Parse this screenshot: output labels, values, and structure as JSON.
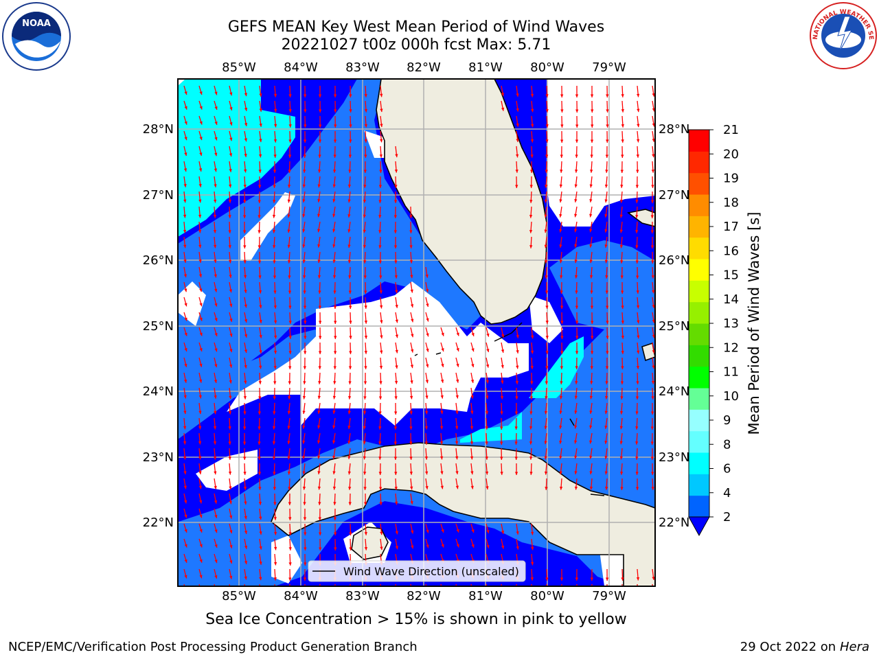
{
  "header": {
    "title_line1": "GEFS MEAN Key West Mean Period of Wind Waves",
    "title_line2": "20221027 t00z 000h fcst   Max: 5.71"
  },
  "logos": {
    "left": {
      "text": "NOAA",
      "icon": "noaa-logo"
    },
    "right": {
      "text": "NATIONAL WEATHER SERVICE",
      "icon": "nws-logo"
    }
  },
  "subtitle": "Sea Ice Concentration > 15% is shown in pink to yellow",
  "footer": {
    "left": "NCEP/EMC/Verification Post Processing Product Generation Branch",
    "right_prefix": "29 Oct 2022 on ",
    "right_host": "Hera"
  },
  "legend": {
    "label": "Wind Wave Direction (unscaled)"
  },
  "colors": {
    "land": "#efede0",
    "ocean_blue": "#0000ff",
    "medium_blue": "#1e78ff",
    "cyan": "#00ffff",
    "arrow": "#ff0000",
    "grid": "#b0b0b0"
  },
  "chart_data": {
    "type": "heatmap",
    "title": "GEFS MEAN Key West Mean Period of Wind Waves",
    "max_value": 5.71,
    "lon_ticks": [
      "85°W",
      "84°W",
      "83°W",
      "82°W",
      "81°W",
      "80°W",
      "79°W"
    ],
    "lat_ticks": [
      "28°N",
      "27°N",
      "26°N",
      "25°N",
      "24°N",
      "23°N",
      "22°N"
    ],
    "lon_range": [
      -86.0,
      -78.3
    ],
    "lat_range": [
      21.0,
      28.8
    ],
    "colorbar": {
      "label": "Mean Period of Wind Waves [s]",
      "ticks": [
        2,
        4,
        6,
        8,
        9,
        10,
        11,
        12,
        13,
        14,
        15,
        16,
        17,
        18,
        19,
        20,
        21
      ],
      "tick_labels": [
        "2",
        "4",
        "6",
        "8",
        "9",
        "10",
        "11",
        "12",
        "13",
        "14",
        "15",
        "16",
        "17",
        "18",
        "19",
        "20",
        "21"
      ],
      "colors": [
        "#0064ff",
        "#00c8ff",
        "#00ffff",
        "#64ffff",
        "#96ffff",
        "#64ff96",
        "#00ff00",
        "#32dc00",
        "#64dc00",
        "#96f000",
        "#c8ff00",
        "#ffff00",
        "#ffdc00",
        "#ffb400",
        "#ff8c00",
        "#ff5000",
        "#ff2800",
        "#ff0000"
      ]
    },
    "field_levels": {
      "below_2": "#0000ff",
      "2_to_4": "#1e78ff",
      "4_to_6": "#00ffff"
    }
  }
}
